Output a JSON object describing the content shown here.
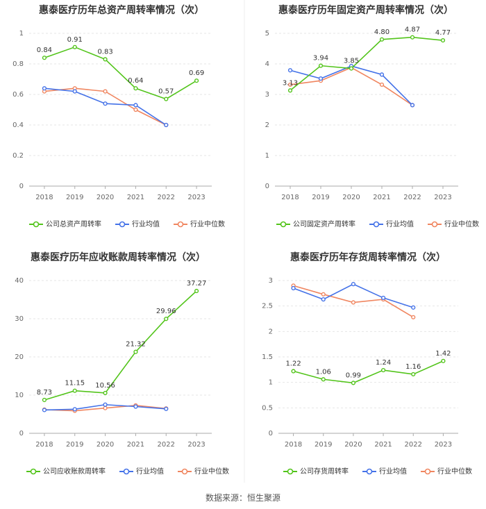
{
  "source_text": "数据来源：恒生聚源",
  "chart_data": [
    {
      "type": "line",
      "title": "惠泰医疗历年总资产周转率情况（次）",
      "categories": [
        "2018",
        "2019",
        "2020",
        "2021",
        "2022",
        "2023"
      ],
      "ylim": [
        0,
        1
      ],
      "yticks": [
        "0",
        "0.2",
        "0.4",
        "0.6",
        "0.8",
        "1"
      ],
      "ytick_values": [
        0,
        0.2,
        0.4,
        0.6,
        0.8,
        1
      ],
      "series": [
        {
          "name": "公司总资产周转率",
          "color": "#52c41a",
          "values": [
            0.84,
            0.91,
            0.83,
            0.64,
            0.57,
            0.69
          ],
          "labels": [
            "0.84",
            "0.91",
            "0.83",
            "0.64",
            "0.57",
            "0.69"
          ]
        },
        {
          "name": "行业均值",
          "color": "#4472e8",
          "values": [
            0.64,
            0.62,
            0.54,
            0.53,
            0.4,
            null
          ]
        },
        {
          "name": "行业中位数",
          "color": "#f08660",
          "values": [
            0.62,
            0.64,
            0.62,
            0.5,
            0.4,
            null
          ]
        }
      ]
    },
    {
      "type": "line",
      "title": "惠泰医疗历年固定资产周转率情况（次）",
      "categories": [
        "2018",
        "2019",
        "2020",
        "2021",
        "2022",
        "2023"
      ],
      "ylim": [
        0,
        5
      ],
      "yticks": [
        "0",
        "1",
        "2",
        "3",
        "4",
        "5"
      ],
      "ytick_values": [
        0,
        1,
        2,
        3,
        4,
        5
      ],
      "series": [
        {
          "name": "公司固定资产周转率",
          "color": "#52c41a",
          "values": [
            3.13,
            3.94,
            3.85,
            4.8,
            4.87,
            4.77
          ],
          "labels": [
            "3.13",
            "3.94",
            "3.85",
            "4.80",
            "4.87",
            "4.77"
          ]
        },
        {
          "name": "行业均值",
          "color": "#4472e8",
          "values": [
            3.79,
            3.52,
            3.93,
            3.65,
            2.65,
            null
          ]
        },
        {
          "name": "行业中位数",
          "color": "#f08660",
          "values": [
            3.32,
            3.45,
            3.88,
            3.32,
            2.65,
            null
          ]
        }
      ]
    },
    {
      "type": "line",
      "title": "惠泰医疗历年应收账款周转率情况（次）",
      "categories": [
        "2018",
        "2019",
        "2020",
        "2021",
        "2022",
        "2023"
      ],
      "ylim": [
        0,
        40
      ],
      "yticks": [
        "0",
        "10",
        "20",
        "30",
        "40"
      ],
      "ytick_values": [
        0,
        10,
        20,
        30,
        40
      ],
      "series": [
        {
          "name": "公司应收账款周转率",
          "color": "#52c41a",
          "values": [
            8.73,
            11.15,
            10.56,
            21.32,
            29.96,
            37.27
          ],
          "labels": [
            "8.73",
            "11.15",
            "10.56",
            "21.32",
            "29.96",
            "37.27"
          ]
        },
        {
          "name": "行业均值",
          "color": "#4472e8",
          "values": [
            6.1,
            6.3,
            7.5,
            7.0,
            6.4,
            null
          ]
        },
        {
          "name": "行业中位数",
          "color": "#f08660",
          "values": [
            6.2,
            5.9,
            6.6,
            7.3,
            6.5,
            null
          ]
        }
      ]
    },
    {
      "type": "line",
      "title": "惠泰医疗历年存货周转率情况（次）",
      "categories": [
        "2018",
        "2019",
        "2020",
        "2021",
        "2022",
        "2023"
      ],
      "ylim": [
        0,
        3
      ],
      "yticks": [
        "0",
        "0.5",
        "1",
        "1.5",
        "2",
        "2.5",
        "3"
      ],
      "ytick_values": [
        0,
        0.5,
        1,
        1.5,
        2,
        2.5,
        3
      ],
      "series": [
        {
          "name": "公司存货周转率",
          "color": "#52c41a",
          "values": [
            1.22,
            1.06,
            0.99,
            1.24,
            1.16,
            1.42
          ],
          "labels": [
            "1.22",
            "1.06",
            "0.99",
            "1.24",
            "1.16",
            "1.42"
          ]
        },
        {
          "name": "行业均值",
          "color": "#4472e8",
          "values": [
            2.85,
            2.63,
            2.93,
            2.66,
            2.47,
            null
          ]
        },
        {
          "name": "行业中位数",
          "color": "#f08660",
          "values": [
            2.9,
            2.73,
            2.57,
            2.63,
            2.28,
            null
          ]
        }
      ]
    }
  ]
}
